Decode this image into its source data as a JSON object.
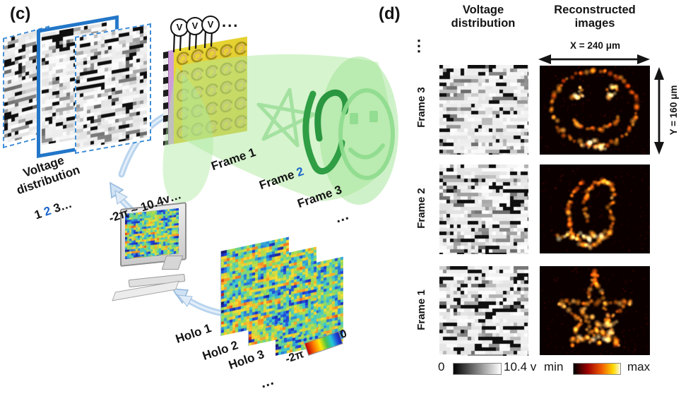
{
  "accent_blue": "#1a66cc",
  "panel_c": {
    "label": "(c)",
    "stack_caption_line1": "Voltage",
    "stack_caption_line2": "distribution",
    "stack_seq_pre": "1 ",
    "stack_seq_highlight": "2",
    "stack_seq_post": " 3…",
    "voltmeter_label": "V",
    "voltmeter_more": "...",
    "frame1_label": "Frame 1",
    "frame2_pre": "Frame ",
    "frame2_num": "2",
    "frame3_label": "Frame 3",
    "frames_more": "…",
    "phase_to_voltage": "-2π ~ 10.4v…",
    "holo1_label": "Holo 1",
    "holo2_label": "Holo 2",
    "holo3_label": "Holo 3",
    "holo_more": "…",
    "colorbar_left": "-2π",
    "colorbar_right": "0"
  },
  "panel_d": {
    "label": "(d)",
    "col_voltage_line1": "Voltage",
    "col_voltage_line2": "distribution",
    "col_recon_line1": "Reconstructed",
    "col_recon_line2": "images",
    "x_dimension": "X = 240 μm",
    "y_dimension": "Y = 160 μm",
    "rows_more": "⋮",
    "rows": [
      {
        "label": "Frame 3",
        "image": "smiley"
      },
      {
        "label": "Frame 2",
        "image": "spiral"
      },
      {
        "label": "Frame 1",
        "image": "star"
      }
    ],
    "voltage_scale_min": "0",
    "voltage_scale_max": "10.4 v",
    "intensity_scale_min": "min",
    "intensity_scale_max": "max"
  }
}
